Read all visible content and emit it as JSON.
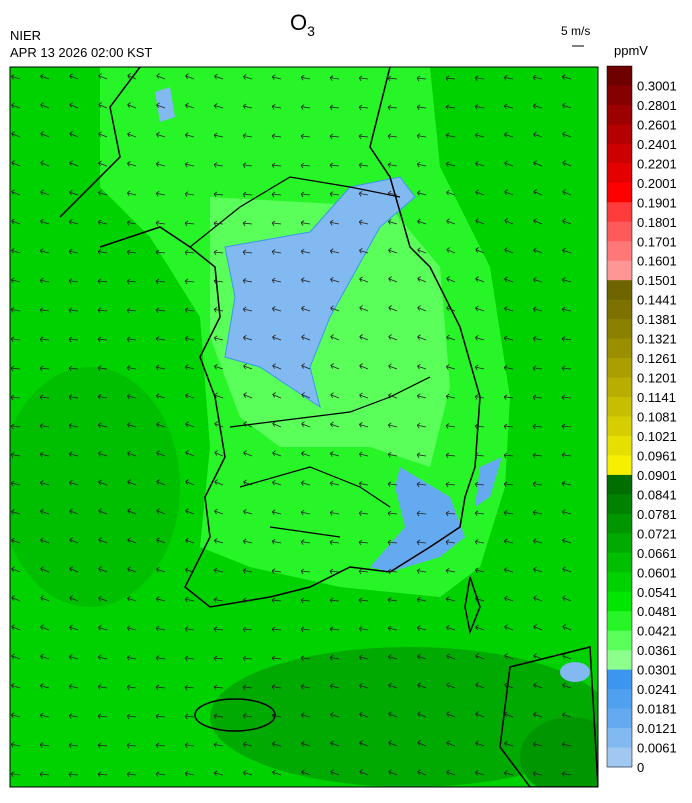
{
  "header": {
    "title": {
      "text": "O",
      "subscript": "3"
    },
    "agency": "NIER",
    "timestamp": "APR 13 2026 02:00 KST",
    "wind_scale": "5 m/s"
  },
  "colorbar": {
    "unit": "ppmV",
    "levels": [
      {
        "label": "0.3001",
        "color": "#6e0000"
      },
      {
        "label": "0.2801",
        "color": "#850000"
      },
      {
        "label": "0.2601",
        "color": "#9c0000"
      },
      {
        "label": "0.2401",
        "color": "#b40000"
      },
      {
        "label": "0.2201",
        "color": "#cc0000"
      },
      {
        "label": "0.2001",
        "color": "#e40000"
      },
      {
        "label": "0.1901",
        "color": "#ff0000"
      },
      {
        "label": "0.1801",
        "color": "#ff3c3c"
      },
      {
        "label": "0.1701",
        "color": "#ff5a5a"
      },
      {
        "label": "0.1601",
        "color": "#ff7878"
      },
      {
        "label": "0.1501",
        "color": "#ff9696"
      },
      {
        "label": "0.1441",
        "color": "#6e6400"
      },
      {
        "label": "0.1381",
        "color": "#7d7200"
      },
      {
        "label": "0.1321",
        "color": "#8c8000"
      },
      {
        "label": "0.1261",
        "color": "#9b8f00"
      },
      {
        "label": "0.1201",
        "color": "#aa9e00"
      },
      {
        "label": "0.1141",
        "color": "#b9ae00"
      },
      {
        "label": "0.1081",
        "color": "#c8be00"
      },
      {
        "label": "0.1021",
        "color": "#d7ce00"
      },
      {
        "label": "0.0961",
        "color": "#e6e000"
      },
      {
        "label": "0.0901",
        "color": "#f5f000"
      },
      {
        "label": "0.0841",
        "color": "#006e00"
      },
      {
        "label": "0.0781",
        "color": "#008200"
      },
      {
        "label": "0.0721",
        "color": "#009600"
      },
      {
        "label": "0.0661",
        "color": "#00aa00"
      },
      {
        "label": "0.0601",
        "color": "#00be00"
      },
      {
        "label": "0.0541",
        "color": "#00d200"
      },
      {
        "label": "0.0481",
        "color": "#00e600"
      },
      {
        "label": "0.0421",
        "color": "#28f528"
      },
      {
        "label": "0.0361",
        "color": "#5aff5a"
      },
      {
        "label": "0.0301",
        "color": "#8cff8c"
      },
      {
        "label": "0.0241",
        "color": "#3c96f0"
      },
      {
        "label": "0.0181",
        "color": "#50a0f0"
      },
      {
        "label": "0.0121",
        "color": "#64aaf0"
      },
      {
        "label": "0.0061",
        "color": "#82b9f0"
      },
      {
        "label": "0",
        "color": "#a0c8f0"
      }
    ]
  }
}
